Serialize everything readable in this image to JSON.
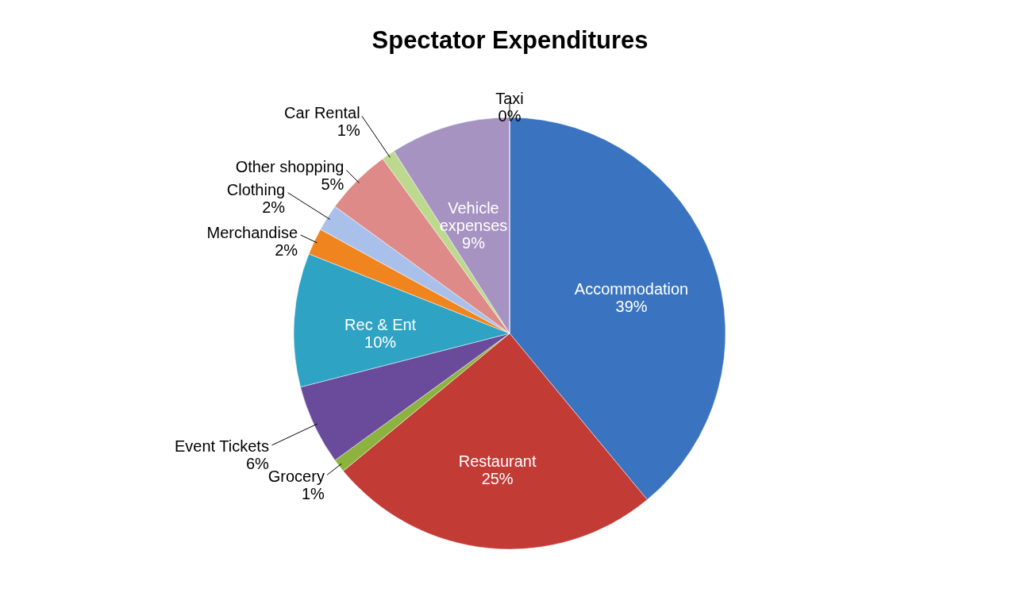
{
  "chart_data": {
    "type": "pie",
    "title": "Spectator Expenditures",
    "categories": [
      "Accommodation",
      "Restaurant",
      "Grocery",
      "Event Tickets",
      "Rec & Ent",
      "Merchandise",
      "Clothing",
      "Other shopping",
      "Car Rental",
      "Vehicle expenses",
      "Taxi"
    ],
    "values": [
      39,
      25,
      1,
      6,
      10,
      2,
      2,
      5,
      1,
      9,
      0
    ],
    "colors": [
      "#3a73bf",
      "#c23b35",
      "#8cb33e",
      "#6a4a9a",
      "#2ea3c4",
      "#f0851f",
      "#a9c1ea",
      "#dd8a88",
      "#bcd98e",
      "#a793c2",
      "#4aa7b8"
    ],
    "value_labels": [
      "39%",
      "25%",
      "1%",
      "6%",
      "10%",
      "2%",
      "2%",
      "5%",
      "1%",
      "9%",
      "0%"
    ]
  }
}
